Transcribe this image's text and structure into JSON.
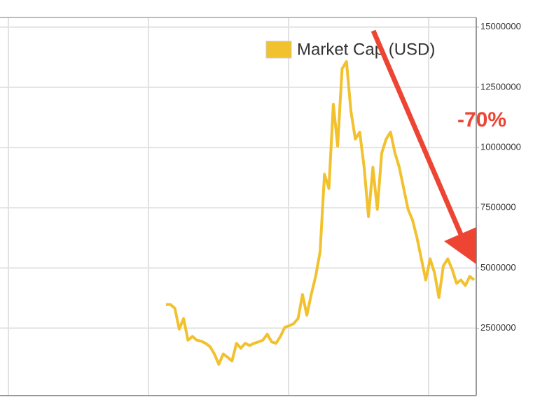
{
  "chart_data": {
    "type": "line",
    "series": [
      {
        "name": "Market Cap (USD)",
        "color": "#f2c12e",
        "values": [
          3480000,
          3480000,
          3330000,
          2460000,
          2900000,
          2000000,
          2160000,
          2000000,
          1960000,
          1870000,
          1730000,
          1430000,
          1000000,
          1430000,
          1290000,
          1140000,
          1870000,
          1670000,
          1870000,
          1780000,
          1870000,
          1930000,
          2000000,
          2250000,
          1930000,
          1870000,
          2160000,
          2540000,
          2600000,
          2690000,
          2900000,
          3900000,
          3040000,
          3900000,
          4650000,
          5670000,
          8890000,
          8300000,
          11800000,
          10060000,
          13270000,
          13570000,
          11520000,
          10350000,
          10640000,
          9180000,
          7130000,
          9180000,
          7430000,
          9770000,
          10350000,
          10640000,
          9770000,
          9180000,
          8300000,
          7430000,
          6990000,
          6260000,
          5380000,
          4500000,
          5380000,
          4800000,
          3770000,
          5090000,
          5380000,
          4940000,
          4360000,
          4500000,
          4270000,
          4650000,
          4500000
        ]
      }
    ],
    "ylim": [
      -300000,
      15400000
    ],
    "yticks": [
      2500000,
      5000000,
      7500000,
      10000000,
      12500000,
      15000000
    ],
    "grid": true,
    "annotation": "-70%"
  }
}
